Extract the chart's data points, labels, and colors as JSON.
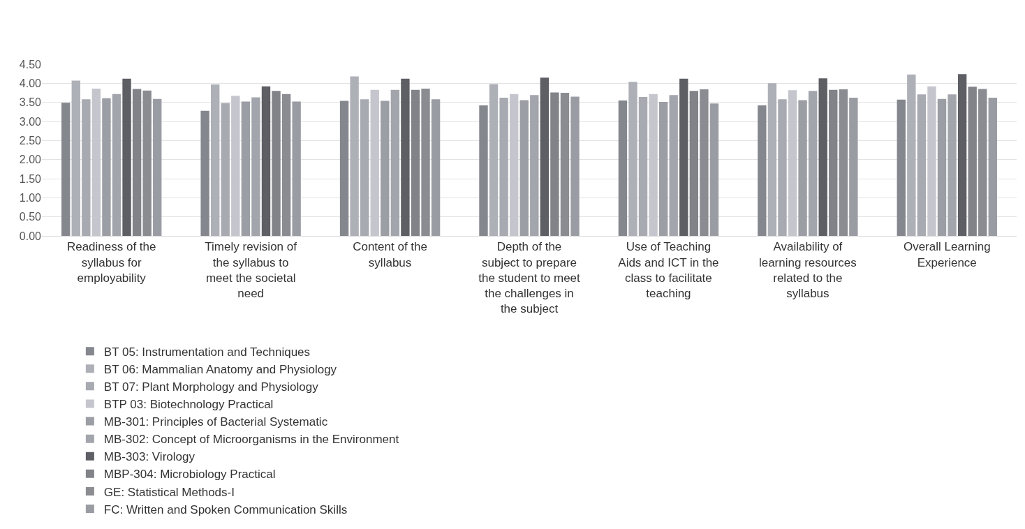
{
  "chart_data": {
    "type": "bar",
    "categories": [
      "Readiness of the syllabus for employability",
      "Timely revision of the syllabus to meet the societal need",
      "Content of the syllabus",
      "Depth of the subject to prepare the student to meet the challenges in the subject",
      "Use of Teaching Aids and ICT in the class to facilitate teaching",
      "Availability of learning resources related to the syllabus",
      "Overall Learning Experience"
    ],
    "series": [
      {
        "name": "BT 05: Instrumentation and Techniques",
        "color": "#85878e",
        "values": [
          3.49,
          3.28,
          3.54,
          3.42,
          3.55,
          3.42,
          3.57
        ]
      },
      {
        "name": "BT 06: Mammalian Anatomy and Physiology",
        "color": "#aeb0b8",
        "values": [
          4.07,
          3.97,
          4.18,
          3.98,
          4.04,
          4.0,
          4.23
        ]
      },
      {
        "name": "BT 07: Plant Morphology and Physiology",
        "color": "#a8aab2",
        "values": [
          3.58,
          3.48,
          3.58,
          3.62,
          3.64,
          3.58,
          3.71
        ]
      },
      {
        "name": "BTP 03: Biotechnology Practical",
        "color": "#c5c6cd",
        "values": [
          3.86,
          3.67,
          3.83,
          3.72,
          3.72,
          3.82,
          3.92
        ]
      },
      {
        "name": "MB-301: Principles of Bacterial Systematic",
        "color": "#9c9ea5",
        "values": [
          3.61,
          3.52,
          3.54,
          3.56,
          3.51,
          3.56,
          3.59
        ]
      },
      {
        "name": "MB-302: Concept of Microorganisms in the Environment",
        "color": "#a3a5ac",
        "values": [
          3.72,
          3.63,
          3.83,
          3.69,
          3.69,
          3.8,
          3.71
        ]
      },
      {
        "name": "MB-303: Virology",
        "color": "#5e5f65",
        "values": [
          4.12,
          3.92,
          4.12,
          4.15,
          4.12,
          4.13,
          4.24
        ]
      },
      {
        "name": "MBP-304: Microbiology Practical",
        "color": "#818389",
        "values": [
          3.85,
          3.8,
          3.83,
          3.76,
          3.8,
          3.83,
          3.91
        ]
      },
      {
        "name": "GE: Statistical Methods-I",
        "color": "#8a8c92",
        "values": [
          3.81,
          3.72,
          3.86,
          3.75,
          3.84,
          3.84,
          3.85
        ]
      },
      {
        "name": "FC: Written and Spoken Communication Skills",
        "color": "#9a9ca3",
        "values": [
          3.59,
          3.52,
          3.58,
          3.65,
          3.47,
          3.62,
          3.62
        ]
      }
    ],
    "ylim": [
      0,
      4.5
    ],
    "yticks": [
      {
        "value": 0,
        "label": "0.00"
      },
      {
        "value": 0.5,
        "label": "0.50"
      },
      {
        "value": 1,
        "label": "1.00"
      },
      {
        "value": 1.5,
        "label": "1.50"
      },
      {
        "value": 2,
        "label": "2.00"
      },
      {
        "value": 2.5,
        "label": "2.50"
      },
      {
        "value": 3,
        "label": "3.00"
      },
      {
        "value": 3.5,
        "label": "3.50"
      },
      {
        "value": 4,
        "label": "4.00"
      },
      {
        "value": 4.5,
        "label": "4.50"
      }
    ],
    "grid": "y",
    "legend": "bottom"
  }
}
